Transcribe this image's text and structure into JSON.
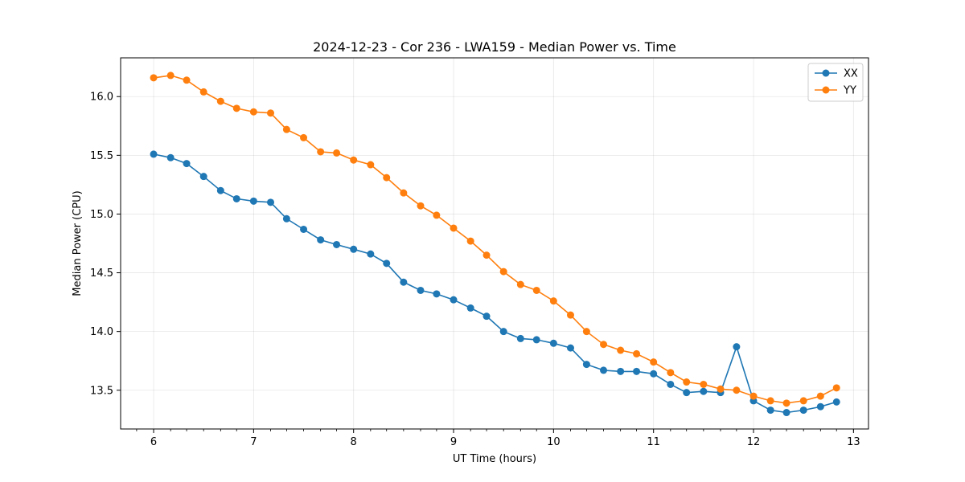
{
  "chart_data": {
    "type": "line",
    "title": "2024-12-23 - Cor 236 - LWA159 - Median Power vs. Time",
    "xlabel": "UT Time (hours)",
    "ylabel": "Median Power (CPU)",
    "xlim": [
      5.67,
      13.15
    ],
    "ylim": [
      13.17,
      16.33
    ],
    "xticks": [
      6,
      7,
      8,
      9,
      10,
      11,
      12,
      13
    ],
    "yticks": [
      13.5,
      14.0,
      14.5,
      15.0,
      15.5,
      16.0
    ],
    "ytick_labels": [
      "13.5",
      "14.0",
      "14.5",
      "15.0",
      "15.5",
      "16.0"
    ],
    "minor_xticks": [
      5.83,
      6.17,
      6.33,
      6.5,
      6.67,
      6.83,
      7.17,
      7.33,
      7.5,
      7.67,
      7.83,
      8.17,
      8.33,
      8.5,
      8.67,
      8.83,
      9.17,
      9.33,
      9.5,
      9.67,
      9.83,
      10.17,
      10.33,
      10.5,
      10.67,
      10.83,
      11.17,
      11.33,
      11.5,
      11.67,
      11.83,
      12.17,
      12.33,
      12.5,
      12.67,
      12.83,
      13.0
    ],
    "grid": true,
    "legend_position": "top-right",
    "x": [
      6.0,
      6.17,
      6.33,
      6.5,
      6.67,
      6.83,
      7.0,
      7.17,
      7.33,
      7.5,
      7.67,
      7.83,
      8.0,
      8.17,
      8.33,
      8.5,
      8.67,
      8.83,
      9.0,
      9.17,
      9.33,
      9.5,
      9.67,
      9.83,
      10.0,
      10.17,
      10.33,
      10.5,
      10.67,
      10.83,
      11.0,
      11.17,
      11.33,
      11.5,
      11.67,
      11.83,
      12.0,
      12.17,
      12.33,
      12.5,
      12.67,
      12.83
    ],
    "series": [
      {
        "name": "XX",
        "color": "#1f77b4",
        "values": [
          15.51,
          15.48,
          15.43,
          15.32,
          15.2,
          15.13,
          15.11,
          15.1,
          14.96,
          14.87,
          14.78,
          14.74,
          14.7,
          14.66,
          14.58,
          14.42,
          14.35,
          14.32,
          14.27,
          14.2,
          14.13,
          14.0,
          13.94,
          13.93,
          13.9,
          13.86,
          13.72,
          13.67,
          13.66,
          13.66,
          13.64,
          13.55,
          13.48,
          13.49,
          13.48,
          13.87,
          13.41,
          13.33,
          13.31,
          13.33,
          13.36,
          13.4
        ]
      },
      {
        "name": "YY",
        "color": "#ff7f0e",
        "values": [
          16.16,
          16.18,
          16.14,
          16.04,
          15.96,
          15.9,
          15.87,
          15.86,
          15.72,
          15.65,
          15.53,
          15.52,
          15.46,
          15.42,
          15.31,
          15.18,
          15.07,
          14.99,
          14.88,
          14.77,
          14.65,
          14.51,
          14.4,
          14.35,
          14.26,
          14.14,
          14.0,
          13.89,
          13.84,
          13.81,
          13.74,
          13.65,
          13.57,
          13.55,
          13.51,
          13.5,
          13.45,
          13.41,
          13.39,
          13.41,
          13.45,
          13.52
        ]
      }
    ]
  }
}
